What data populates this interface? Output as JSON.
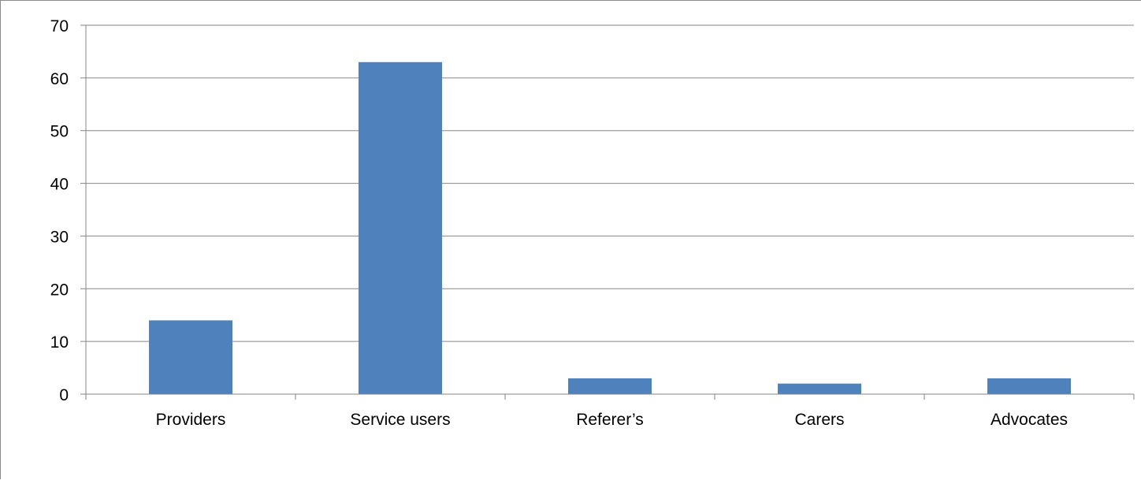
{
  "chart_data": {
    "type": "bar",
    "title": "",
    "xlabel": "",
    "ylabel": "",
    "categories": [
      "Providers",
      "Service users",
      "Referer’s",
      "Carers",
      "Advocates"
    ],
    "values": [
      14,
      63,
      3,
      2,
      3
    ],
    "ylim": [
      0,
      70
    ],
    "yticks": [
      0,
      10,
      20,
      30,
      40,
      50,
      60,
      70
    ],
    "grid": true,
    "legend": "none",
    "colors": {
      "bar": "#4f81bd",
      "grid": "#868686",
      "axis": "#868686"
    }
  }
}
